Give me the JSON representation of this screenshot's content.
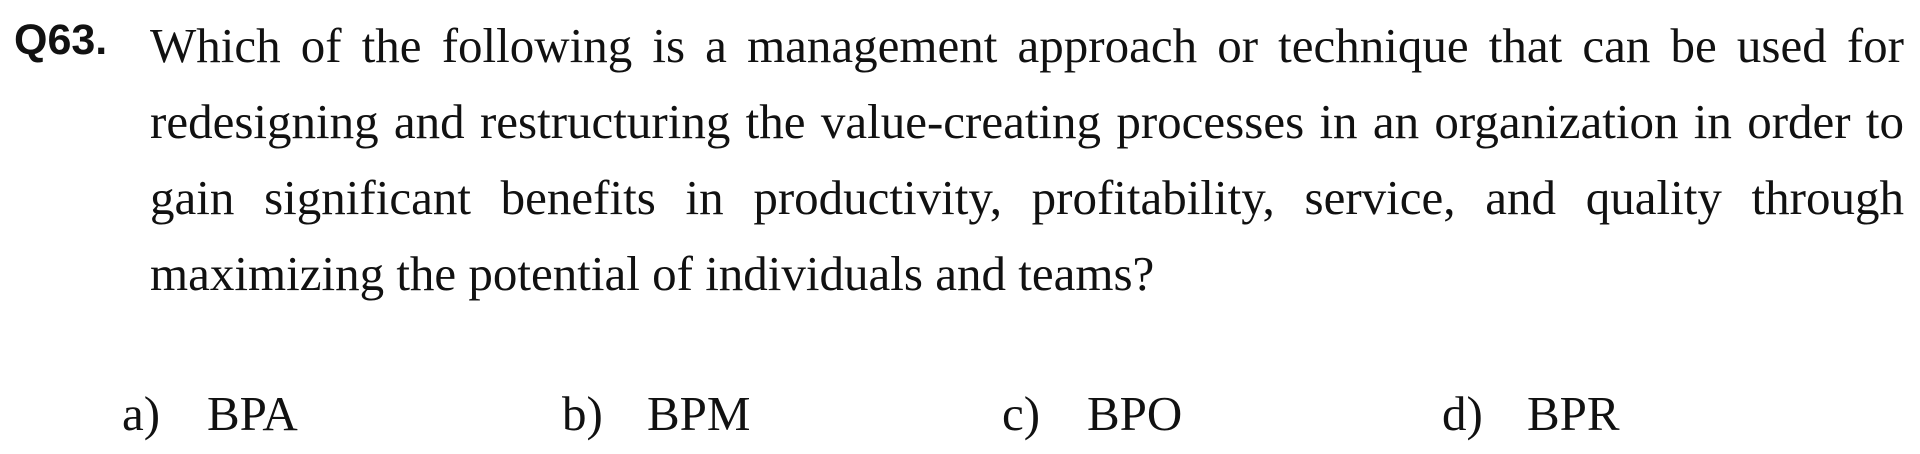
{
  "question": {
    "number": "Q63.",
    "text": "Which of the following is a management approach or technique that can be used for redesigning and restructuring the value-creating processes in an organization in order to gain significant benefits in productivity, profitability, service, and quality through maximizing the potential of individuals and teams?"
  },
  "options": [
    {
      "label": "a)",
      "text": "BPA"
    },
    {
      "label": "b)",
      "text": "BPM"
    },
    {
      "label": "c)",
      "text": "BPO"
    },
    {
      "label": "d)",
      "text": "BPR"
    }
  ]
}
